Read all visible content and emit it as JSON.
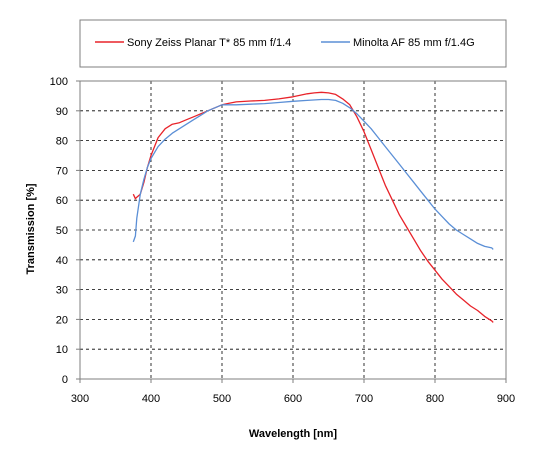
{
  "chart_data": {
    "type": "line",
    "title": "",
    "xlabel": "Wavelength [nm]",
    "ylabel": "Transmission [%]",
    "xlim": [
      300,
      900
    ],
    "ylim": [
      0,
      100
    ],
    "xticks": [
      300,
      400,
      500,
      600,
      700,
      800,
      900
    ],
    "yticks": [
      0,
      10,
      20,
      30,
      40,
      50,
      60,
      70,
      80,
      90,
      100
    ],
    "grid": "dashed",
    "legend_position": "top",
    "series": [
      {
        "name": "Sony Zeiss Planar T* 85 mm f/1.4",
        "color": "#e8232a",
        "points": [
          [
            375,
            62
          ],
          [
            378,
            60.5
          ],
          [
            380,
            61
          ],
          [
            385,
            62
          ],
          [
            390,
            66
          ],
          [
            395,
            71
          ],
          [
            400,
            75
          ],
          [
            410,
            81
          ],
          [
            420,
            84
          ],
          [
            430,
            85.5
          ],
          [
            440,
            86
          ],
          [
            450,
            87
          ],
          [
            460,
            88
          ],
          [
            470,
            89
          ],
          [
            480,
            90
          ],
          [
            490,
            91
          ],
          [
            500,
            92
          ],
          [
            510,
            92.5
          ],
          [
            520,
            93
          ],
          [
            540,
            93.3
          ],
          [
            560,
            93.5
          ],
          [
            580,
            94
          ],
          [
            600,
            94.7
          ],
          [
            620,
            95.7
          ],
          [
            630,
            96
          ],
          [
            640,
            96.2
          ],
          [
            650,
            96
          ],
          [
            660,
            95.5
          ],
          [
            670,
            94
          ],
          [
            680,
            92
          ],
          [
            690,
            88
          ],
          [
            700,
            83
          ],
          [
            710,
            77
          ],
          [
            720,
            71
          ],
          [
            730,
            65
          ],
          [
            740,
            60
          ],
          [
            750,
            55
          ],
          [
            760,
            51
          ],
          [
            770,
            47
          ],
          [
            780,
            43
          ],
          [
            790,
            39.5
          ],
          [
            800,
            36.5
          ],
          [
            810,
            33.5
          ],
          [
            820,
            31
          ],
          [
            830,
            28.5
          ],
          [
            840,
            26.5
          ],
          [
            850,
            24.5
          ],
          [
            860,
            23
          ],
          [
            870,
            21
          ],
          [
            880,
            19.5
          ],
          [
            882,
            19
          ]
        ]
      },
      {
        "name": "Minolta AF 85 mm f/1.4G",
        "color": "#5b8fd6",
        "points": [
          [
            375,
            46
          ],
          [
            378,
            48
          ],
          [
            380,
            54
          ],
          [
            385,
            62
          ],
          [
            390,
            67
          ],
          [
            395,
            71
          ],
          [
            400,
            74
          ],
          [
            410,
            78
          ],
          [
            420,
            80.5
          ],
          [
            430,
            82.5
          ],
          [
            440,
            84
          ],
          [
            450,
            85.5
          ],
          [
            460,
            87
          ],
          [
            470,
            88.5
          ],
          [
            480,
            90
          ],
          [
            490,
            91
          ],
          [
            500,
            92
          ],
          [
            520,
            92
          ],
          [
            540,
            92.2
          ],
          [
            560,
            92.4
          ],
          [
            580,
            92.8
          ],
          [
            600,
            93.2
          ],
          [
            620,
            93.5
          ],
          [
            640,
            93.8
          ],
          [
            650,
            93.8
          ],
          [
            660,
            93.5
          ],
          [
            670,
            92.5
          ],
          [
            680,
            91
          ],
          [
            690,
            89
          ],
          [
            700,
            86.5
          ],
          [
            710,
            84
          ],
          [
            720,
            81
          ],
          [
            730,
            78
          ],
          [
            740,
            75
          ],
          [
            750,
            72
          ],
          [
            760,
            69
          ],
          [
            770,
            66
          ],
          [
            780,
            63
          ],
          [
            790,
            60
          ],
          [
            800,
            57
          ],
          [
            810,
            54.5
          ],
          [
            820,
            52
          ],
          [
            830,
            50
          ],
          [
            840,
            48.5
          ],
          [
            850,
            47
          ],
          [
            860,
            45.5
          ],
          [
            870,
            44.5
          ],
          [
            880,
            44
          ],
          [
            882,
            43.5
          ]
        ]
      }
    ]
  }
}
